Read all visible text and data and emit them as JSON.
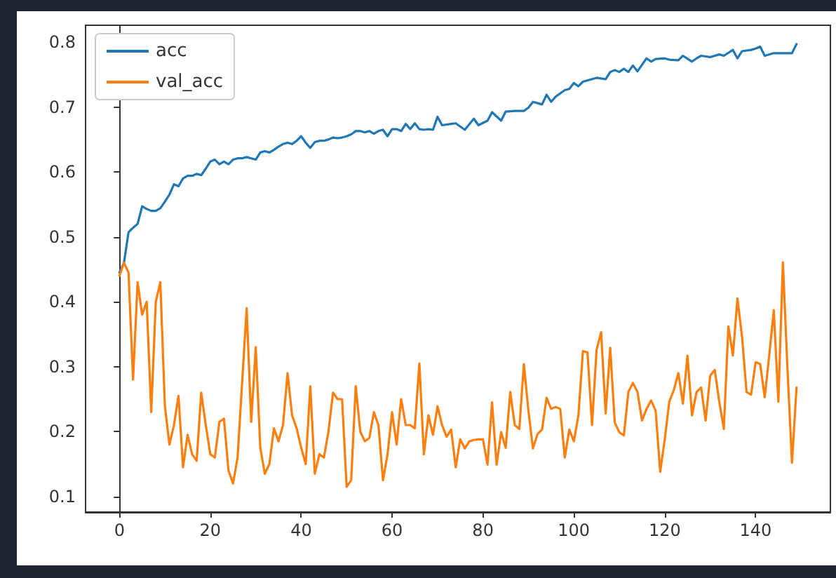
{
  "chart_data": {
    "type": "line",
    "xlim": [
      -7.45,
      156.45
    ],
    "xticks": [
      0,
      20,
      40,
      60,
      80,
      100,
      120,
      140
    ],
    "ylim": [
      0.076,
      0.826
    ],
    "yticks": [
      0.1,
      0.2,
      0.3,
      0.4,
      0.5,
      0.6,
      0.7,
      0.8
    ],
    "legend": "top left",
    "series": [
      {
        "name": "acc",
        "color": "#1f77b4",
        "x": [
          0,
          1,
          2,
          3,
          4,
          5,
          6,
          7,
          8,
          9,
          10,
          11,
          12,
          13,
          14,
          15,
          16,
          17,
          18,
          19,
          20,
          21,
          22,
          23,
          24,
          25,
          26,
          27,
          28,
          29,
          30,
          31,
          32,
          33,
          34,
          35,
          36,
          37,
          38,
          39,
          40,
          41,
          42,
          43,
          44,
          45,
          46,
          47,
          48,
          49,
          50,
          51,
          52,
          53,
          54,
          55,
          56,
          57,
          58,
          59,
          60,
          61,
          62,
          63,
          64,
          65,
          66,
          67,
          68,
          69,
          70,
          71,
          73,
          74,
          76,
          78,
          79,
          81,
          82,
          84,
          85,
          87,
          89,
          90,
          91,
          93,
          94,
          95,
          96,
          98,
          99,
          100,
          101,
          102,
          104,
          105,
          107,
          108,
          109,
          110,
          111,
          112,
          113,
          114,
          116,
          117,
          118,
          120,
          121,
          123,
          124,
          126,
          127,
          128,
          130,
          132,
          133,
          135,
          136,
          137,
          139,
          140,
          141,
          142,
          144,
          146,
          148,
          149
        ],
        "values": [
          0.445,
          0.46,
          0.507,
          0.514,
          0.52,
          0.547,
          0.543,
          0.54,
          0.54,
          0.544,
          0.554,
          0.565,
          0.581,
          0.578,
          0.59,
          0.594,
          0.594,
          0.597,
          0.595,
          0.605,
          0.616,
          0.619,
          0.612,
          0.616,
          0.612,
          0.619,
          0.621,
          0.621,
          0.623,
          0.621,
          0.619,
          0.63,
          0.632,
          0.63,
          0.634,
          0.639,
          0.643,
          0.645,
          0.643,
          0.648,
          0.655,
          0.645,
          0.637,
          0.646,
          0.648,
          0.648,
          0.65,
          0.653,
          0.652,
          0.653,
          0.655,
          0.658,
          0.663,
          0.663,
          0.661,
          0.663,
          0.659,
          0.663,
          0.665,
          0.655,
          0.666,
          0.666,
          0.663,
          0.674,
          0.666,
          0.675,
          0.666,
          0.665,
          0.666,
          0.665,
          0.685,
          0.672,
          0.674,
          0.675,
          0.665,
          0.682,
          0.672,
          0.679,
          0.692,
          0.679,
          0.693,
          0.694,
          0.694,
          0.699,
          0.708,
          0.704,
          0.719,
          0.708,
          0.716,
          0.726,
          0.728,
          0.737,
          0.732,
          0.739,
          0.743,
          0.745,
          0.743,
          0.754,
          0.757,
          0.754,
          0.759,
          0.754,
          0.764,
          0.755,
          0.775,
          0.77,
          0.774,
          0.775,
          0.773,
          0.772,
          0.779,
          0.77,
          0.775,
          0.779,
          0.777,
          0.781,
          0.779,
          0.788,
          0.775,
          0.786,
          0.788,
          0.79,
          0.793,
          0.779,
          0.783,
          0.783,
          0.783,
          0.797
        ]
      },
      {
        "name": "val_acc",
        "color": "#ff7f0e",
        "x": [
          0,
          1,
          2,
          3,
          4,
          5,
          6,
          7,
          8,
          9,
          10,
          11,
          12,
          13,
          14,
          15,
          16,
          17,
          18,
          19,
          20,
          21,
          22,
          23,
          24,
          25,
          26,
          27,
          28,
          29,
          30,
          31,
          32,
          33,
          34,
          35,
          36,
          37,
          38,
          39,
          40,
          41,
          42,
          43,
          44,
          45,
          46,
          47,
          48,
          49,
          50,
          51,
          52,
          53,
          54,
          55,
          56,
          57,
          58,
          59,
          60,
          61,
          62,
          63,
          64,
          65,
          66,
          67,
          68,
          69,
          70,
          71,
          72,
          73,
          74,
          75,
          76,
          77,
          78,
          79,
          80,
          81,
          82,
          83,
          84,
          85,
          86,
          87,
          88,
          89,
          90,
          91,
          92,
          93,
          94,
          95,
          96,
          97,
          98,
          99,
          100,
          101,
          102,
          103,
          104,
          105,
          106,
          107,
          108,
          109,
          110,
          111,
          112,
          113,
          114,
          115,
          116,
          117,
          118,
          119,
          120,
          121,
          122,
          123,
          124,
          125,
          126,
          127,
          128,
          129,
          130,
          131,
          132,
          133,
          134,
          135,
          136,
          137,
          138,
          139,
          140,
          141,
          142,
          143,
          144,
          145,
          146,
          147,
          148,
          149
        ],
        "values": [
          0.44,
          0.46,
          0.445,
          0.28,
          0.43,
          0.38,
          0.4,
          0.23,
          0.4,
          0.43,
          0.24,
          0.18,
          0.21,
          0.255,
          0.145,
          0.195,
          0.165,
          0.155,
          0.26,
          0.21,
          0.165,
          0.16,
          0.215,
          0.22,
          0.14,
          0.12,
          0.16,
          0.275,
          0.39,
          0.215,
          0.33,
          0.175,
          0.135,
          0.15,
          0.205,
          0.185,
          0.21,
          0.29,
          0.225,
          0.205,
          0.175,
          0.15,
          0.27,
          0.135,
          0.165,
          0.16,
          0.2,
          0.26,
          0.25,
          0.25,
          0.115,
          0.125,
          0.27,
          0.2,
          0.185,
          0.19,
          0.23,
          0.21,
          0.125,
          0.165,
          0.23,
          0.18,
          0.25,
          0.21,
          0.21,
          0.205,
          0.305,
          0.165,
          0.225,
          0.195,
          0.239,
          0.21,
          0.192,
          0.203,
          0.145,
          0.188,
          0.174,
          0.185,
          0.187,
          0.188,
          0.188,
          0.149,
          0.245,
          0.149,
          0.199,
          0.175,
          0.261,
          0.21,
          0.204,
          0.304,
          0.232,
          0.174,
          0.196,
          0.203,
          0.252,
          0.235,
          0.238,
          0.235,
          0.16,
          0.203,
          0.185,
          0.225,
          0.324,
          0.322,
          0.21,
          0.326,
          0.353,
          0.228,
          0.329,
          0.214,
          0.199,
          0.194,
          0.261,
          0.275,
          0.261,
          0.217,
          0.235,
          0.248,
          0.232,
          0.138,
          0.188,
          0.246,
          0.264,
          0.29,
          0.243,
          0.317,
          0.225,
          0.261,
          0.268,
          0.217,
          0.286,
          0.295,
          0.246,
          0.204,
          0.362,
          0.317,
          0.405,
          0.347,
          0.261,
          0.257,
          0.307,
          0.304,
          0.253,
          0.318,
          0.387,
          0.246,
          0.461,
          0.297,
          0.152,
          0.268
        ]
      }
    ]
  }
}
